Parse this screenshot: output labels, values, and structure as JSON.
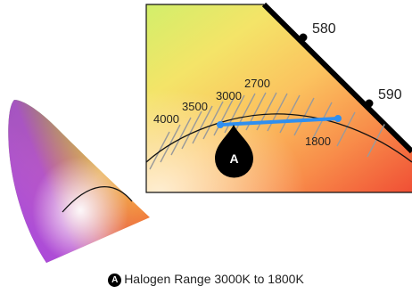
{
  "wavelength_labels": [
    "580",
    "590"
  ],
  "cct_labels": [
    "4000",
    "3500",
    "3000",
    "2700",
    "1800"
  ],
  "marker_letter": "A",
  "caption_text": "Halogen Range 3000K to 1800K",
  "colors": {
    "halogen_range": "#2f8ff0",
    "marker": "#000000",
    "isotherm": "#9a9a9a",
    "locus": "#111111"
  }
}
